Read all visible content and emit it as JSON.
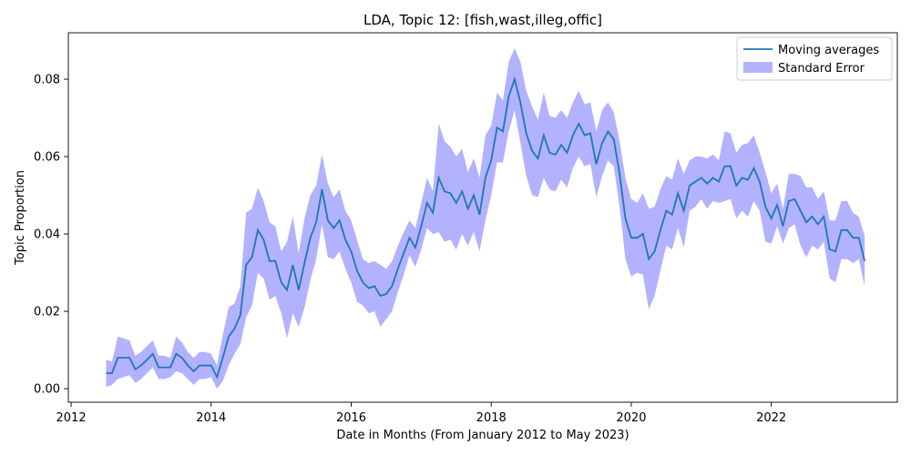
{
  "chart_data": {
    "type": "line",
    "title": "LDA, Topic 12: [fish,wast,illeg,offic]",
    "xlabel": "Date in Months (From January 2012 to May 2023)",
    "ylabel": "Topic Proportion",
    "xlim": [
      2011.96,
      2023.8
    ],
    "ylim": [
      -0.0035,
      0.092
    ],
    "x_ticks": [
      2012,
      2014,
      2016,
      2018,
      2020,
      2022
    ],
    "x_tick_labels": [
      "2012",
      "2014",
      "2016",
      "2018",
      "2020",
      "2022"
    ],
    "y_ticks": [
      0.0,
      0.02,
      0.04,
      0.06,
      0.08
    ],
    "y_tick_labels": [
      "0.00",
      "0.02",
      "0.04",
      "0.06",
      "0.08"
    ],
    "grid": false,
    "legend_position": "top-right",
    "colors": {
      "line": "#1f77b4",
      "band": "#0000ff",
      "band_opacity": 0.3
    },
    "x_start": 2012.5,
    "x_step_months": 1,
    "series": [
      {
        "name": "Moving averages",
        "values": [
          0.004,
          0.004,
          0.008,
          0.008,
          0.008,
          0.005,
          0.006,
          0.0075,
          0.009,
          0.0055,
          0.0055,
          0.0055,
          0.009,
          0.008,
          0.006,
          0.0045,
          0.006,
          0.006,
          0.006,
          0.003,
          0.008,
          0.0135,
          0.0155,
          0.019,
          0.032,
          0.034,
          0.041,
          0.0385,
          0.033,
          0.033,
          0.0275,
          0.0255,
          0.032,
          0.0255,
          0.0325,
          0.039,
          0.043,
          0.0515,
          0.0435,
          0.0415,
          0.0435,
          0.0385,
          0.0355,
          0.0305,
          0.0275,
          0.026,
          0.0265,
          0.024,
          0.0245,
          0.0265,
          0.031,
          0.035,
          0.039,
          0.0365,
          0.042,
          0.048,
          0.0455,
          0.0545,
          0.051,
          0.0505,
          0.048,
          0.051,
          0.0465,
          0.05,
          0.045,
          0.0545,
          0.059,
          0.0675,
          0.0665,
          0.0755,
          0.08,
          0.074,
          0.066,
          0.0615,
          0.0595,
          0.0655,
          0.061,
          0.0605,
          0.063,
          0.061,
          0.0655,
          0.0685,
          0.0655,
          0.066,
          0.058,
          0.0635,
          0.0665,
          0.0645,
          0.0555,
          0.044,
          0.039,
          0.039,
          0.04,
          0.0335,
          0.0355,
          0.041,
          0.046,
          0.045,
          0.0505,
          0.046,
          0.0525,
          0.0535,
          0.0545,
          0.053,
          0.0545,
          0.0535,
          0.0575,
          0.0575,
          0.0525,
          0.0545,
          0.054,
          0.057,
          0.0535,
          0.047,
          0.044,
          0.0475,
          0.042,
          0.0485,
          0.049,
          0.046,
          0.043,
          0.0445,
          0.0425,
          0.0445,
          0.036,
          0.0355,
          0.041,
          0.041,
          0.039,
          0.039,
          0.033
        ]
      },
      {
        "name": "Standard Error",
        "upper": [
          0.0075,
          0.007,
          0.0135,
          0.013,
          0.0125,
          0.0085,
          0.0095,
          0.011,
          0.0125,
          0.0085,
          0.0085,
          0.008,
          0.0135,
          0.012,
          0.0095,
          0.008,
          0.0095,
          0.0095,
          0.009,
          0.006,
          0.014,
          0.021,
          0.022,
          0.0265,
          0.0455,
          0.0465,
          0.052,
          0.0485,
          0.043,
          0.042,
          0.0355,
          0.038,
          0.0445,
          0.035,
          0.044,
          0.05,
          0.0525,
          0.0605,
          0.053,
          0.0495,
          0.0515,
          0.046,
          0.0435,
          0.0385,
          0.0335,
          0.0325,
          0.033,
          0.032,
          0.031,
          0.033,
          0.037,
          0.0405,
          0.0435,
          0.0415,
          0.048,
          0.0545,
          0.051,
          0.0685,
          0.064,
          0.0625,
          0.06,
          0.062,
          0.056,
          0.0595,
          0.0545,
          0.0655,
          0.068,
          0.0765,
          0.0745,
          0.0845,
          0.088,
          0.0845,
          0.077,
          0.073,
          0.0695,
          0.0765,
          0.0705,
          0.07,
          0.072,
          0.07,
          0.074,
          0.077,
          0.0735,
          0.074,
          0.0665,
          0.072,
          0.074,
          0.0715,
          0.064,
          0.0545,
          0.049,
          0.048,
          0.0505,
          0.0465,
          0.047,
          0.0515,
          0.055,
          0.054,
          0.0595,
          0.0555,
          0.059,
          0.06,
          0.06,
          0.0595,
          0.0605,
          0.059,
          0.0665,
          0.066,
          0.061,
          0.063,
          0.0635,
          0.0655,
          0.061,
          0.056,
          0.0505,
          0.053,
          0.0465,
          0.0555,
          0.0555,
          0.055,
          0.052,
          0.052,
          0.049,
          0.051,
          0.0435,
          0.0435,
          0.0485,
          0.0485,
          0.0455,
          0.0445,
          0.0395
        ]
      }
    ],
    "legend": {
      "entries": [
        "Moving averages",
        "Standard Error"
      ]
    }
  }
}
